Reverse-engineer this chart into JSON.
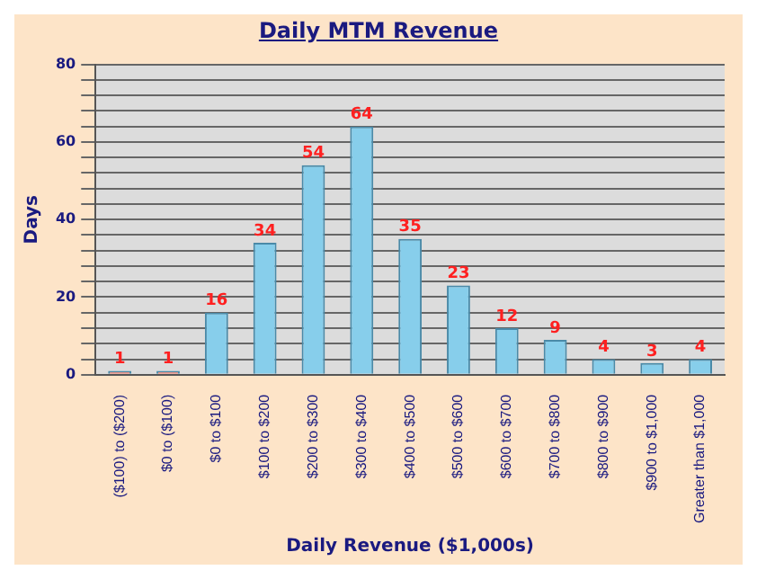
{
  "chart_data": {
    "type": "bar",
    "title": "Daily MTM Revenue",
    "xlabel": "Daily Revenue ($1,000s)",
    "ylabel": "Days",
    "categories": [
      "($100) to ($200)",
      "$0 to ($100)",
      "$0 to $100",
      "$100 to $200",
      "$200 to $300",
      "$300 to $400",
      "$400 to $500",
      "$500 to $600",
      "$600 to $700",
      "$700 to $800",
      "$800 to $900",
      "$900 to $1,000",
      "Greater than $1,000"
    ],
    "values": [
      1,
      1,
      16,
      34,
      54,
      64,
      35,
      23,
      12,
      9,
      4,
      3,
      4
    ],
    "colors": [
      "#f08070",
      "#f08070",
      "#87ceeb",
      "#87ceeb",
      "#87ceeb",
      "#87ceeb",
      "#87ceeb",
      "#87ceeb",
      "#87ceeb",
      "#87ceeb",
      "#87ceeb",
      "#87ceeb",
      "#87ceeb"
    ],
    "ylim": [
      0,
      80
    ],
    "yticks": [
      0,
      {
        "value": 4,
        "label": null
      },
      {
        "value": 8,
        "label": null
      },
      {
        "value": 12,
        "label": null
      },
      {
        "value": 16,
        "label": null
      },
      20,
      {
        "value": 24,
        "label": null
      },
      {
        "value": 28,
        "label": null
      },
      {
        "value": 32,
        "label": null
      },
      {
        "value": 36,
        "label": null
      },
      40,
      {
        "value": 44,
        "label": null
      },
      {
        "value": 48,
        "label": null
      },
      {
        "value": 52,
        "label": null
      },
      {
        "value": 56,
        "label": null
      },
      60,
      {
        "value": 64,
        "label": null
      },
      {
        "value": 68,
        "label": null
      },
      {
        "value": 72,
        "label": null
      },
      {
        "value": 76,
        "label": null
      },
      80
    ],
    "grid": "y",
    "data_labels": true
  }
}
